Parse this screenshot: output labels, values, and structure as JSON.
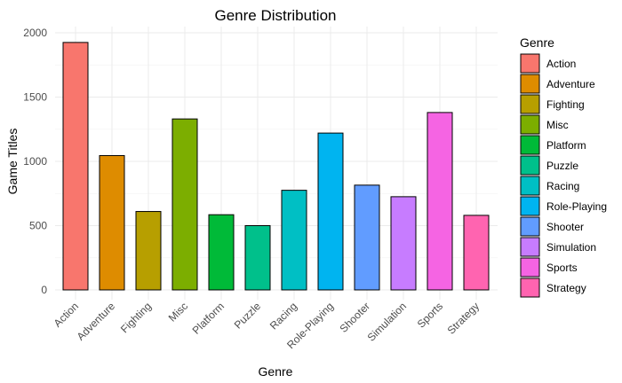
{
  "chart_data": {
    "type": "bar",
    "title": "Genre Distribution",
    "xlabel": "Genre",
    "ylabel": "Game Titles",
    "categories": [
      "Action",
      "Adventure",
      "Fighting",
      "Misc",
      "Platform",
      "Puzzle",
      "Racing",
      "Role-Playing",
      "Shooter",
      "Simulation",
      "Sports",
      "Strategy"
    ],
    "values": [
      1925,
      1045,
      610,
      1330,
      585,
      500,
      775,
      1220,
      815,
      725,
      1380,
      580
    ],
    "colors": [
      "#F8766D",
      "#DE8C00",
      "#B79F00",
      "#7CAE00",
      "#00BA38",
      "#00C08B",
      "#00BFC4",
      "#00B4F0",
      "#619CFF",
      "#C77CFF",
      "#F564E3",
      "#FF64B0"
    ],
    "ylim": [
      0,
      2000
    ],
    "yticks": [
      0,
      500,
      1000,
      1500,
      2000
    ],
    "grid": true,
    "legend": {
      "title": "Genre",
      "placement": "right",
      "entries": [
        "Action",
        "Adventure",
        "Fighting",
        "Misc",
        "Platform",
        "Puzzle",
        "Racing",
        "Role-Playing",
        "Shooter",
        "Simulation",
        "Sports",
        "Strategy"
      ]
    }
  }
}
